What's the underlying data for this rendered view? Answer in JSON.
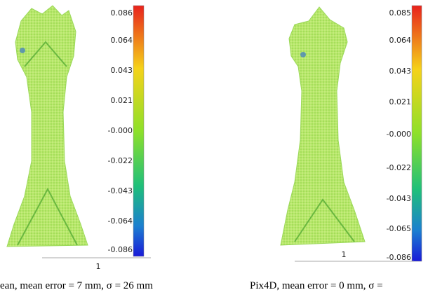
{
  "panels": [
    {
      "colorbar_ticks": [
        "0.086",
        "0.064",
        "0.043",
        "0.021",
        "-0.000",
        "-0.022",
        "-0.043",
        "-0.064",
        "-0.086"
      ],
      "scale_label": "1",
      "caption": "ean, mean error = 7 mm, σ = 26 mm"
    },
    {
      "colorbar_ticks": [
        "0.085",
        "0.064",
        "0.043",
        "0.021",
        "-0.000",
        "-0.022",
        "-0.043",
        "-0.065",
        "-0.086"
      ],
      "scale_label": "1",
      "caption": "Pix4D, mean error = 0 mm, σ ="
    }
  ]
}
